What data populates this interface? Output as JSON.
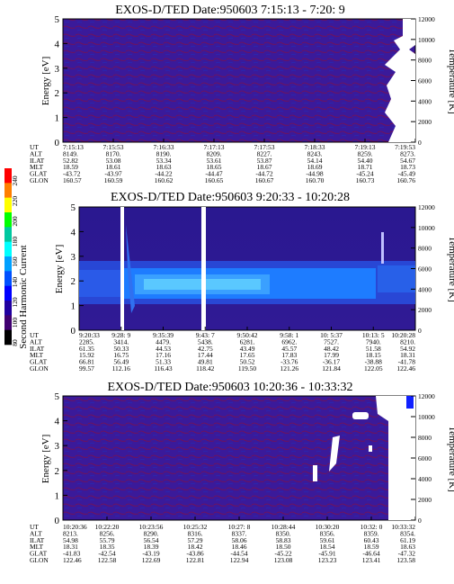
{
  "colorbar": {
    "label": "Second Harmonic Current",
    "ticks": [
      "240",
      "220",
      "200",
      "180",
      "160",
      "140",
      "120",
      "100",
      "80"
    ],
    "colors": [
      "#ff0000",
      "#ff7f00",
      "#ffff00",
      "#00ff00",
      "#00c8a0",
      "#00ffff",
      "#00a0ff",
      "#0050ff",
      "#0000ff",
      "#2000a0",
      "#400070",
      "#000000"
    ]
  },
  "panels": [
    {
      "title": "EXOS-D/TED   Date:950603  7:15:13 - 7:20: 9",
      "ylabel": "Energy [eV]",
      "ylabel_right": "Temperature [K]",
      "energy_ticks": [
        "0",
        "1",
        "2",
        "3",
        "4",
        "5"
      ],
      "temp_ticks": [
        "0",
        "2000",
        "4000",
        "6000",
        "8000",
        "10000",
        "12000"
      ],
      "row_labels": [
        "UT",
        "ALT",
        "ILAT",
        "MLT",
        "GLAT",
        "GLON"
      ],
      "columns": [
        [
          "7:15:13",
          "8149.",
          "52.82",
          "18.59",
          "-43.72",
          "160.57"
        ],
        [
          "7:15:53",
          "8170.",
          "53.08",
          "18.61",
          "-43.97",
          "160.59"
        ],
        [
          "7:16:33",
          "8190.",
          "53.34",
          "18.63",
          "-44.22",
          "160.62"
        ],
        [
          "7:17:13",
          "8209.",
          "53.61",
          "18.65",
          "-44.47",
          "160.65"
        ],
        [
          "7:17:53",
          "8227.",
          "53.87",
          "18.67",
          "-44.72",
          "160.67"
        ],
        [
          "7:18:33",
          "8243.",
          "54.14",
          "18.69",
          "-44.98",
          "160.70"
        ],
        [
          "7:19:13",
          "8259.",
          "54.40",
          "18.71",
          "-45.24",
          "160.73"
        ],
        [
          "7:19:53",
          "8273.",
          "54.67",
          "18.73",
          "-45.49",
          "160.76"
        ]
      ]
    },
    {
      "title": "EXOS-D/TED   Date:950603  9:20:33 - 10:20:28",
      "ylabel": "Energy [eV]",
      "ylabel_right": "Temperature [K]",
      "energy_ticks": [
        "0",
        "1",
        "2",
        "3",
        "4",
        "5"
      ],
      "temp_ticks": [
        "0",
        "2000",
        "4000",
        "6000",
        "8000",
        "10000",
        "12000"
      ],
      "row_labels": [
        "UT",
        "ALT",
        "ILAT",
        "MLT",
        "GLAT",
        "GLON"
      ],
      "columns": [
        [
          "9:20:33",
          "2285.",
          "61.35",
          "15.92",
          "66.81",
          "99.57"
        ],
        [
          "9:28: 9",
          "3414.",
          "50.33",
          "16.75",
          "56.49",
          "112.16"
        ],
        [
          "9:35:39",
          "4479.",
          "44.53",
          "17.16",
          "51.33",
          "116.43"
        ],
        [
          "9:43: 7",
          "5438.",
          "42.75",
          "17.44",
          "49.81",
          "118.42"
        ],
        [
          "9:50:42",
          "6281.",
          "43.49",
          "17.65",
          "50.52",
          "119.50"
        ],
        [
          "9:58: 1",
          "6962.",
          "45.57",
          "17.83",
          "-33.76",
          "121.26"
        ],
        [
          "10: 5:37",
          "7527.",
          "48.42",
          "17.99",
          "-36.17",
          "121.84"
        ],
        [
          "10:13: 5",
          "7940.",
          "51.58",
          "18.15",
          "-38.88",
          "122.05"
        ],
        [
          "10:20:28",
          "8210.",
          "54.92",
          "18.31",
          "-41.78",
          "122.46"
        ]
      ]
    },
    {
      "title": "EXOS-D/TED   Date:950603  10:20:36 - 10:33:32",
      "ylabel": "Energy [eV]",
      "ylabel_right": "Temperature [K]",
      "energy_ticks": [
        "0",
        "1",
        "2",
        "3",
        "4",
        "5"
      ],
      "temp_ticks": [
        "0",
        "2000",
        "4000",
        "6000",
        "8000",
        "10000",
        "12000"
      ],
      "row_labels": [
        "UT",
        "ALT",
        "ILAT",
        "MLT",
        "GLAT",
        "GLON"
      ],
      "columns": [
        [
          "10:20:36",
          "8213.",
          "54.98",
          "18.31",
          "-41.83",
          "122.46"
        ],
        [
          "10:22:20",
          "8256.",
          "55.79",
          "18.35",
          "-42.54",
          "122.58"
        ],
        [
          "10:23:56",
          "8290.",
          "56.54",
          "18.39",
          "-43.19",
          "122.69"
        ],
        [
          "10:25:32",
          "8316.",
          "57.29",
          "18.42",
          "-43.86",
          "122.81"
        ],
        [
          "10:27: 8",
          "8337.",
          "58.06",
          "18.46",
          "-44.54",
          "122.94"
        ],
        [
          "10:28:44",
          "8350.",
          "58.83",
          "18.50",
          "-45.22",
          "123.08"
        ],
        [
          "10:30:20",
          "8356.",
          "59.61",
          "18.54",
          "-45.91",
          "123.23"
        ],
        [
          "10:32: 0",
          "8359.",
          "60.43",
          "18.59",
          "-46.64",
          "123.41"
        ],
        [
          "10:33:32",
          "8354.",
          "61.19",
          "18.63",
          "-47.32",
          "123.58"
        ]
      ]
    }
  ],
  "chart_data": [
    {
      "type": "heatmap",
      "title": "EXOS-D/TED   Date:950603  7:15:13 - 7:20: 9",
      "ylabel": "Energy [eV]",
      "ylabel_right": "Temperature [K]",
      "ylim": [
        0,
        5
      ],
      "ylim_right": [
        0,
        12000
      ],
      "x_ticks": [
        "7:15:13",
        "7:15:53",
        "7:16:33",
        "7:17:13",
        "7:17:53",
        "7:18:33",
        "7:19:13",
        "7:19:53"
      ],
      "colorbar": "Second Harmonic Current",
      "colorbar_range": [
        80,
        240
      ]
    },
    {
      "type": "heatmap",
      "title": "EXOS-D/TED   Date:950603  9:20:33 - 10:20:28",
      "ylabel": "Energy [eV]",
      "ylabel_right": "Temperature [K]",
      "ylim": [
        0,
        5
      ],
      "ylim_right": [
        0,
        12000
      ],
      "x_ticks": [
        "9:20:33",
        "9:28: 9",
        "9:35:39",
        "9:43: 7",
        "9:50:42",
        "9:58: 1",
        "10: 5:37",
        "10:13: 5",
        "10:20:28"
      ],
      "colorbar": "Second Harmonic Current",
      "colorbar_range": [
        80,
        240
      ]
    },
    {
      "type": "heatmap",
      "title": "EXOS-D/TED   Date:950603  10:20:36 - 10:33:32",
      "ylabel": "Energy [eV]",
      "ylabel_right": "Temperature [K]",
      "ylim": [
        0,
        5
      ],
      "ylim_right": [
        0,
        12000
      ],
      "x_ticks": [
        "10:20:36",
        "10:22:20",
        "10:23:56",
        "10:25:32",
        "10:27: 8",
        "10:28:44",
        "10:30:20",
        "10:32: 0",
        "10:33:32"
      ],
      "colorbar": "Second Harmonic Current",
      "colorbar_range": [
        80,
        240
      ]
    }
  ]
}
